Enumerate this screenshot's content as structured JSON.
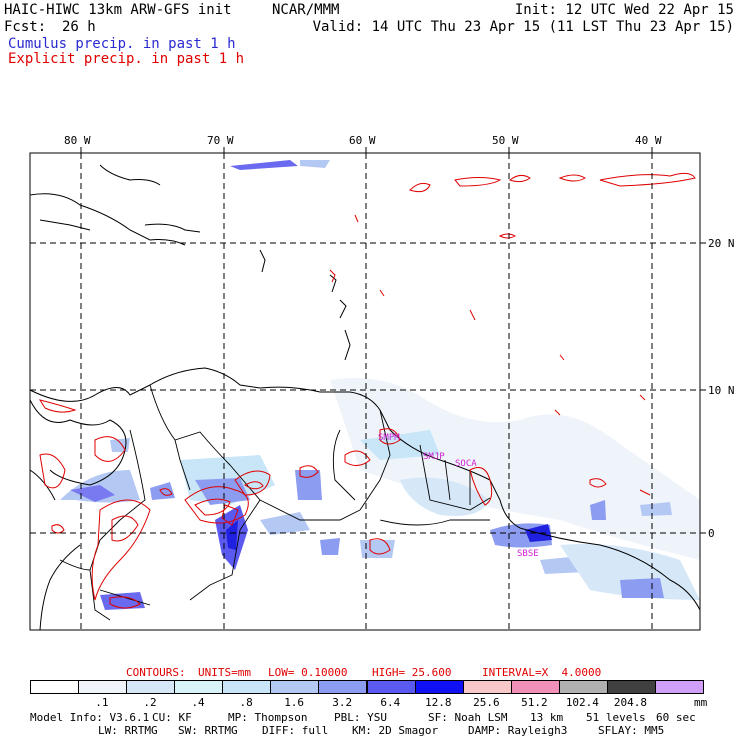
{
  "header": {
    "model_title": "HAIC-HIWC 13km ARW-GFS init",
    "agency": "NCAR/MMM",
    "fcst_label": "Fcst:",
    "fcst_value": "26 h",
    "init": "Init: 12 UTC Wed 22 Apr 15",
    "valid": "Valid: 14 UTC Thu 23 Apr 15 (11 LST Thu 23 Apr 15)",
    "field1": "Cumulus precip. in past 1 h",
    "field2": "Explicit precip. in past 1 h",
    "field1_color": "#2a2ad0",
    "field2_color": "#e00000"
  },
  "map": {
    "lon_labels": [
      "80 W",
      "70 W",
      "60 W",
      "50 W",
      "40 W"
    ],
    "lat_labels": [
      "20 N",
      "10 N",
      "0"
    ],
    "station_labels": [
      "SMPM",
      "SMJP",
      "SOCA",
      "SBSE"
    ],
    "coast_color": "#000000",
    "contour_color": "#e00000",
    "station_color": "#d020d0"
  },
  "contour_info": {
    "contours_label": "CONTOURS:",
    "units": "UNITS=mm",
    "low": "LOW= 0.10000",
    "high": "HIGH= 25.600",
    "interval": "INTERVAL=X  4.0000"
  },
  "colorbar": {
    "colors": [
      "#ffffff",
      "#eef4fa",
      "#d6e8f8",
      "#d8f4f8",
      "#c8e6f8",
      "#b4c8f4",
      "#8c9cf0",
      "#5a5af0",
      "#1010f4",
      "#f8c8c8",
      "#f090b8",
      "#b0b0b0",
      "#404040",
      "#d0a0f8"
    ],
    "labels": [
      ".1",
      ".2",
      ".4",
      ".8",
      "1.6",
      "3.2",
      "6.4",
      "12.8",
      "25.6",
      "51.2",
      "102.4",
      "204.8"
    ],
    "unit": "mm"
  },
  "footer": {
    "line1": [
      "Model Info: V3.6.1",
      "CU: KF",
      "MP: Thompson",
      "PBL: YSU",
      "SF: Noah LSM",
      "13 km",
      "51 levels",
      "60 sec"
    ],
    "line2": [
      "LW: RRTMG",
      "SW: RRTMG",
      "DIFF: full",
      "KM: 2D Smagor",
      "DAMP: Rayleigh3",
      "SFLAY: MM5"
    ]
  }
}
